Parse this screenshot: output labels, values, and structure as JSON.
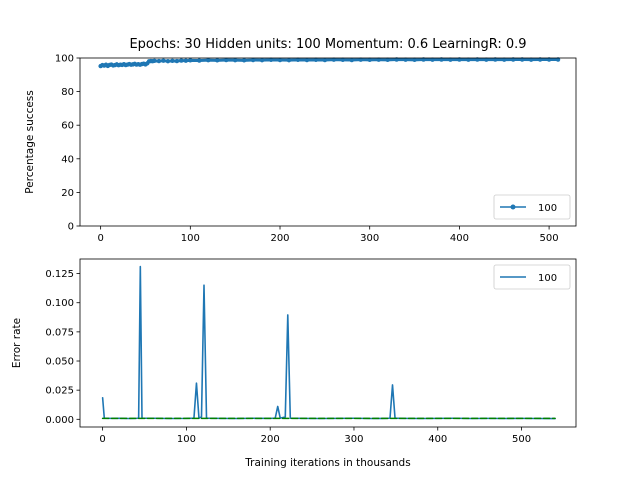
{
  "chart_data": [
    {
      "type": "line",
      "title": "Epochs: 30 Hidden units: 100 Momentum: 0.6 LearningR: 0.9",
      "xlabel": "",
      "ylabel": "Percentage success",
      "xlim": [
        -23,
        530
      ],
      "ylim": [
        0,
        100
      ],
      "xticks": [
        0,
        100,
        200,
        300,
        400,
        500
      ],
      "yticks": [
        0,
        20,
        40,
        60,
        80,
        100
      ],
      "grid": false,
      "legend_position": "lower-right",
      "series": [
        {
          "name": "100",
          "color": "#1f77b4",
          "marker": "point",
          "x": [
            0,
            2,
            4,
            6,
            8,
            10,
            12,
            14,
            16,
            18,
            20,
            22,
            24,
            26,
            28,
            30,
            32,
            34,
            36,
            38,
            40,
            42,
            44,
            46,
            48,
            50,
            52,
            54,
            56,
            58,
            60,
            65,
            70,
            75,
            80,
            85,
            90,
            95,
            100,
            110,
            120,
            130,
            140,
            150,
            160,
            170,
            180,
            190,
            200,
            210,
            220,
            230,
            240,
            250,
            260,
            270,
            280,
            290,
            300,
            310,
            320,
            330,
            340,
            350,
            360,
            370,
            380,
            390,
            400,
            410,
            420,
            430,
            440,
            450,
            460,
            470,
            480,
            490,
            500,
            510
          ],
          "y": [
            95.2,
            95.8,
            95.5,
            96.0,
            95.3,
            95.9,
            96.1,
            95.6,
            95.8,
            96.2,
            95.7,
            96.0,
            95.9,
            96.3,
            95.8,
            96.1,
            96.4,
            96.0,
            96.2,
            96.5,
            96.1,
            96.3,
            96.0,
            96.4,
            96.6,
            96.2,
            96.8,
            98.0,
            98.2,
            98.1,
            98.3,
            98.2,
            98.4,
            98.1,
            98.3,
            98.2,
            98.5,
            98.4,
            98.6,
            98.5,
            98.7,
            98.6,
            98.8,
            98.7,
            98.6,
            98.8,
            98.7,
            98.9,
            98.8,
            98.7,
            98.9,
            98.8,
            98.9,
            98.8,
            99.0,
            98.9,
            98.8,
            99.0,
            98.9,
            99.0,
            98.9,
            99.1,
            99.0,
            98.9,
            99.1,
            99.0,
            99.1,
            99.0,
            99.1,
            99.0,
            99.1,
            99.0,
            99.1,
            99.0,
            99.1,
            99.1,
            99.0,
            99.1,
            99.1,
            99.1
          ]
        }
      ]
    },
    {
      "type": "line",
      "title": "",
      "xlabel": "Training iterations in thousands",
      "ylabel": "Error rate",
      "xlim": [
        -27,
        565
      ],
      "ylim": [
        -0.0066,
        0.1375
      ],
      "xticks": [
        0,
        100,
        200,
        300,
        400,
        500
      ],
      "yticks": [
        0.0,
        0.025,
        0.05,
        0.075,
        0.1,
        0.125
      ],
      "ytick_labels": [
        "0.000",
        "0.025",
        "0.050",
        "0.075",
        "0.100",
        "0.125"
      ],
      "grid": false,
      "legend_position": "top-right",
      "series": [
        {
          "name": "100",
          "color": "#1f77b4",
          "style": "solid",
          "x": [
            0,
            2,
            10,
            20,
            30,
            40,
            43,
            45,
            47,
            60,
            80,
            100,
            109,
            112,
            115,
            118,
            121,
            124,
            140,
            160,
            180,
            200,
            206,
            209,
            212,
            218,
            221,
            224,
            240,
            260,
            280,
            300,
            320,
            340,
            343,
            346,
            349,
            360,
            380,
            400,
            420,
            440,
            460,
            480,
            500,
            520,
            540
          ],
          "y": [
            0.0185,
            0.001,
            0.0008,
            0.0009,
            0.0007,
            0.0008,
            0.001,
            0.131,
            0.001,
            0.0009,
            0.0007,
            0.0008,
            0.001,
            0.031,
            0.001,
            0.002,
            0.115,
            0.001,
            0.0008,
            0.0007,
            0.0009,
            0.0008,
            0.001,
            0.011,
            0.001,
            0.002,
            0.0895,
            0.001,
            0.0008,
            0.0007,
            0.0008,
            0.0009,
            0.0007,
            0.0008,
            0.001,
            0.0295,
            0.001,
            0.0008,
            0.0007,
            0.0008,
            0.0009,
            0.0007,
            0.0008,
            0.0007,
            0.0008,
            0.0007,
            0.0006
          ]
        },
        {
          "name": "",
          "color": "#008000",
          "style": "dashed",
          "x": [
            0,
            540
          ],
          "y": [
            0.0008,
            0.0008
          ]
        }
      ]
    }
  ]
}
